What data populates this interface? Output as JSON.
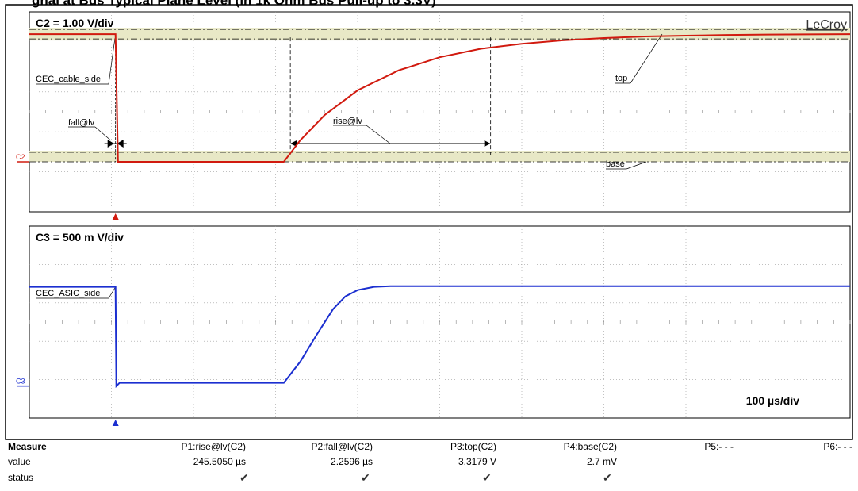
{
  "header_title": "gnal at Bus Typical Plane Level (in 1k Ohm Bus Pull-up to 3.3V)",
  "brand": "LeCroy",
  "colors": {
    "c2": "#d11a0f",
    "c3": "#1b2fd0",
    "band": "#e8e8c6",
    "grid": "#9a9a9a"
  },
  "chart_data": [
    {
      "type": "line",
      "title": "C2 = 1.00 V/div",
      "channel_marker": "C2",
      "trace_label": "CEC_cable_side",
      "x_unit": "µs",
      "y_unit": "V",
      "xlim": [
        0,
        1000
      ],
      "ylim": [
        -1.3,
        3.9
      ],
      "series": [
        {
          "x": [
            0,
            50,
            105,
            108,
            310,
            330,
            360,
            400,
            450,
            500,
            550,
            600,
            650,
            700,
            750,
            800,
            850,
            900,
            1000
          ],
          "y": [
            3.32,
            3.32,
            3.32,
            0.0,
            0.0,
            0.56,
            1.22,
            1.86,
            2.38,
            2.72,
            2.94,
            3.07,
            3.16,
            3.22,
            3.26,
            3.28,
            3.3,
            3.31,
            3.32
          ]
        }
      ],
      "annotations": {
        "fall": "fall@lv",
        "rise": "rise@lv",
        "top": "top",
        "base": "base"
      },
      "grid": true
    },
    {
      "type": "line",
      "title": "C3 = 500 m V/div",
      "channel_marker": "C3",
      "trace_label": "CEC_ASIC_side",
      "x_unit": "µs",
      "y_unit": "V",
      "xlim": [
        0,
        1000
      ],
      "ylim": [
        -0.5,
        2.5
      ],
      "timebase": "100 µs/div",
      "series": [
        {
          "x": [
            0,
            105,
            106,
            110,
            310,
            330,
            350,
            370,
            385,
            400,
            420,
            440,
            1000
          ],
          "y": [
            1.55,
            1.55,
            0.0,
            0.05,
            0.05,
            0.38,
            0.8,
            1.2,
            1.4,
            1.5,
            1.55,
            1.56,
            1.56
          ]
        }
      ],
      "grid": true
    }
  ],
  "measure": {
    "header": "Measure",
    "row_labels": [
      "value",
      "status"
    ],
    "params": [
      {
        "name": "P1:rise@lv(C2)",
        "value": "245.5050 µs",
        "status": "✔"
      },
      {
        "name": "P2:fall@lv(C2)",
        "value": "2.2596 µs",
        "status": "✔"
      },
      {
        "name": "P3:top(C2)",
        "value": "3.3179 V",
        "status": "✔"
      },
      {
        "name": "P4:base(C2)",
        "value": "2.7 mV",
        "status": "✔"
      },
      {
        "name": "P5:- - -",
        "value": "",
        "status": ""
      },
      {
        "name": "P6:- - -",
        "value": "",
        "status": ""
      }
    ]
  }
}
